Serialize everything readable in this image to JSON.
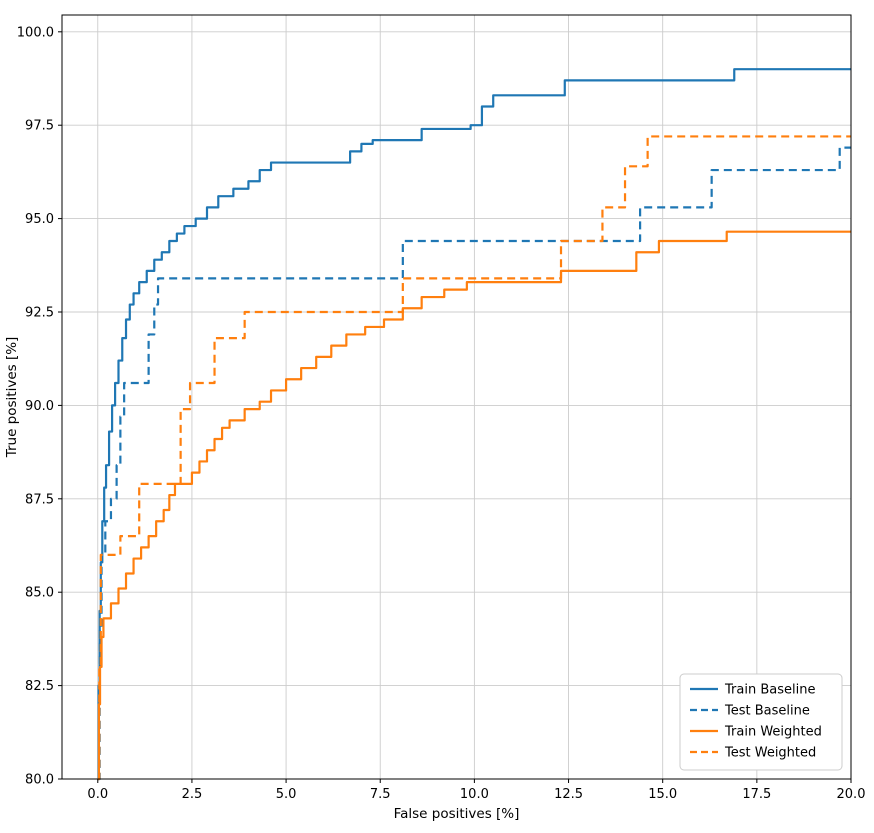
{
  "chart_data": {
    "type": "line",
    "title": "",
    "xlabel": "False positives [%]",
    "ylabel": "True positives [%]",
    "xlim": [
      -0.95,
      20.0
    ],
    "ylim": [
      80.0,
      100.45
    ],
    "xticks": [
      0,
      2.5,
      5,
      7.5,
      10,
      12.5,
      15,
      17.5,
      20
    ],
    "yticks": [
      80,
      82.5,
      85,
      87.5,
      90,
      92.5,
      95,
      97.5,
      100
    ],
    "grid": true,
    "legend_position": "lower right",
    "step_mode": "post",
    "colors": {
      "blue": "#1f77b4",
      "orange": "#ff7f0e",
      "grid": "#cccccc",
      "spine": "#000000",
      "legend_border": "#cccccc"
    },
    "series": [
      {
        "name": "Train Baseline",
        "color": "#1f77b4",
        "dash": "solid",
        "points": [
          [
            0,
            80
          ],
          [
            0.02,
            82.5
          ],
          [
            0.05,
            84.5
          ],
          [
            0.08,
            85.8
          ],
          [
            0.12,
            86.9
          ],
          [
            0.17,
            87.8
          ],
          [
            0.22,
            88.4
          ],
          [
            0.3,
            89.3
          ],
          [
            0.38,
            90.0
          ],
          [
            0.46,
            90.6
          ],
          [
            0.55,
            91.2
          ],
          [
            0.65,
            91.8
          ],
          [
            0.75,
            92.3
          ],
          [
            0.85,
            92.7
          ],
          [
            0.95,
            93.0
          ],
          [
            1.1,
            93.3
          ],
          [
            1.3,
            93.6
          ],
          [
            1.5,
            93.9
          ],
          [
            1.7,
            94.1
          ],
          [
            1.9,
            94.4
          ],
          [
            2.1,
            94.6
          ],
          [
            2.3,
            94.8
          ],
          [
            2.6,
            95.0
          ],
          [
            2.9,
            95.3
          ],
          [
            3.2,
            95.6
          ],
          [
            3.6,
            95.8
          ],
          [
            4.0,
            96.0
          ],
          [
            4.3,
            96.3
          ],
          [
            4.6,
            96.5
          ],
          [
            6.7,
            96.8
          ],
          [
            7.0,
            97.0
          ],
          [
            7.3,
            97.1
          ],
          [
            8.6,
            97.4
          ],
          [
            9.9,
            97.5
          ],
          [
            10.2,
            98.0
          ],
          [
            10.5,
            98.3
          ],
          [
            12.4,
            98.7
          ],
          [
            16.9,
            99.0
          ],
          [
            20,
            99.0
          ]
        ]
      },
      {
        "name": "Test Baseline",
        "color": "#1f77b4",
        "dash": "dashed",
        "points": [
          [
            0,
            80
          ],
          [
            0.05,
            84.0
          ],
          [
            0.1,
            86.0
          ],
          [
            0.2,
            86.9
          ],
          [
            0.35,
            87.5
          ],
          [
            0.5,
            88.4
          ],
          [
            0.6,
            89.7
          ],
          [
            0.7,
            90.6
          ],
          [
            1.35,
            91.9
          ],
          [
            1.5,
            92.7
          ],
          [
            1.6,
            93.4
          ],
          [
            8.1,
            94.4
          ],
          [
            14.4,
            95.3
          ],
          [
            16.3,
            96.3
          ],
          [
            19.7,
            96.9
          ],
          [
            20,
            96.9
          ]
        ]
      },
      {
        "name": "Train Weighted",
        "color": "#ff7f0e",
        "dash": "solid",
        "points": [
          [
            0,
            80
          ],
          [
            0.03,
            82.0
          ],
          [
            0.06,
            83.0
          ],
          [
            0.1,
            83.8
          ],
          [
            0.15,
            84.3
          ],
          [
            0.35,
            84.7
          ],
          [
            0.55,
            85.1
          ],
          [
            0.75,
            85.5
          ],
          [
            0.95,
            85.9
          ],
          [
            1.15,
            86.2
          ],
          [
            1.35,
            86.5
          ],
          [
            1.55,
            86.9
          ],
          [
            1.75,
            87.2
          ],
          [
            1.9,
            87.6
          ],
          [
            2.05,
            87.9
          ],
          [
            2.5,
            88.2
          ],
          [
            2.7,
            88.5
          ],
          [
            2.9,
            88.8
          ],
          [
            3.1,
            89.1
          ],
          [
            3.3,
            89.4
          ],
          [
            3.5,
            89.6
          ],
          [
            3.9,
            89.9
          ],
          [
            4.3,
            90.1
          ],
          [
            4.6,
            90.4
          ],
          [
            5.0,
            90.7
          ],
          [
            5.4,
            91.0
          ],
          [
            5.8,
            91.3
          ],
          [
            6.2,
            91.6
          ],
          [
            6.6,
            91.9
          ],
          [
            7.1,
            92.1
          ],
          [
            7.6,
            92.3
          ],
          [
            8.1,
            92.6
          ],
          [
            8.6,
            92.9
          ],
          [
            9.2,
            93.1
          ],
          [
            9.8,
            93.3
          ],
          [
            12.3,
            93.6
          ],
          [
            14.3,
            94.1
          ],
          [
            14.9,
            94.4
          ],
          [
            16.7,
            94.65
          ],
          [
            20,
            94.65
          ]
        ]
      },
      {
        "name": "Test Weighted",
        "color": "#ff7f0e",
        "dash": "dashed",
        "points": [
          [
            0,
            80
          ],
          [
            0.04,
            83.0
          ],
          [
            0.08,
            86.0
          ],
          [
            0.6,
            86.5
          ],
          [
            1.1,
            87.9
          ],
          [
            2.2,
            89.9
          ],
          [
            2.45,
            90.6
          ],
          [
            3.1,
            91.8
          ],
          [
            3.9,
            92.5
          ],
          [
            8.1,
            93.4
          ],
          [
            12.3,
            94.4
          ],
          [
            13.4,
            95.3
          ],
          [
            14.0,
            96.4
          ],
          [
            14.6,
            97.2
          ],
          [
            20,
            97.2
          ]
        ]
      }
    ]
  }
}
